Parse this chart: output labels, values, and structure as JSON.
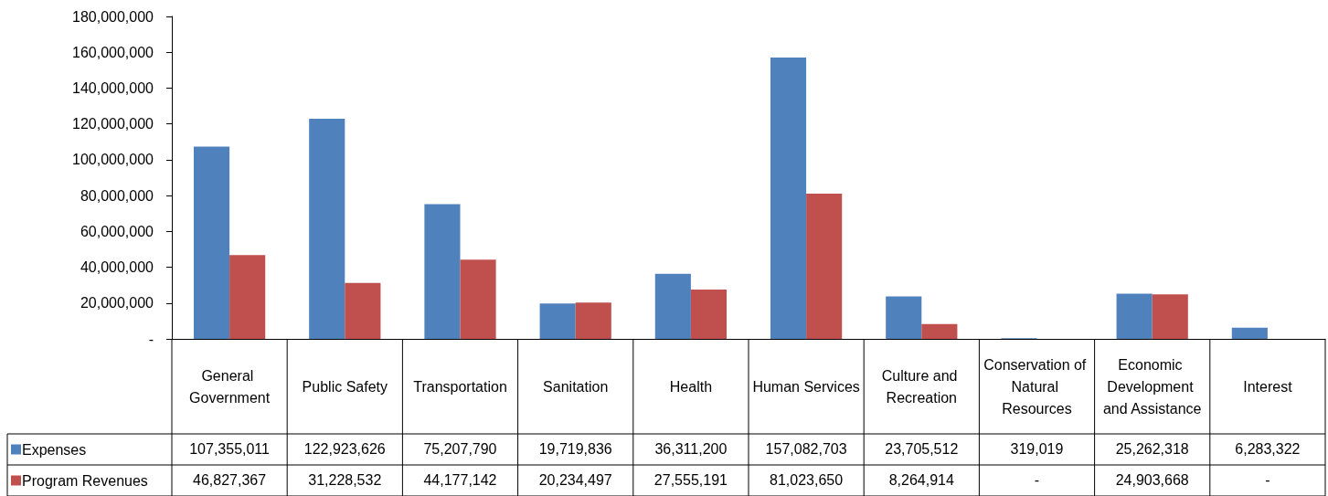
{
  "chart_data": {
    "type": "bar",
    "categories": [
      "General Government",
      "Public Safety",
      "Transportation",
      "Sanitation",
      "Health",
      "Human Services",
      "Culture and Recreation",
      "Conservation of Natural Resources",
      "Economic Development and Assistance",
      "Interest"
    ],
    "series": [
      {
        "name": "Expenses",
        "color": "#4f81bd",
        "values": [
          107355011,
          122923626,
          75207790,
          19719836,
          36311200,
          157082703,
          23705512,
          319019,
          25262318,
          6283322
        ],
        "value_labels": [
          "107,355,011",
          "122,923,626",
          "75,207,790",
          "19,719,836",
          "36,311,200",
          "157,082,703",
          "23,705,512",
          "319,019",
          "25,262,318",
          "6,283,322"
        ]
      },
      {
        "name": "Program Revenues",
        "color": "#c0504d",
        "values": [
          46827367,
          31228532,
          44177142,
          20234497,
          27555191,
          81023650,
          8264914,
          0,
          24903668,
          0
        ],
        "value_labels": [
          "46,827,367",
          "31,228,532",
          "44,177,142",
          "20,234,497",
          "27,555,191",
          "81,023,650",
          "8,264,914",
          "-",
          "24,903,668",
          "-"
        ]
      }
    ],
    "ylim": [
      0,
      180000000
    ],
    "yticks": [
      {
        "value": 0,
        "label": "-"
      },
      {
        "value": 20000000,
        "label": "20,000,000"
      },
      {
        "value": 40000000,
        "label": "40,000,000"
      },
      {
        "value": 60000000,
        "label": "60,000,000"
      },
      {
        "value": 80000000,
        "label": "80,000,000"
      },
      {
        "value": 100000000,
        "label": "100,000,000"
      },
      {
        "value": 120000000,
        "label": "120,000,000"
      },
      {
        "value": 140000000,
        "label": "140,000,000"
      },
      {
        "value": 160000000,
        "label": "160,000,000"
      },
      {
        "value": 180000000,
        "label": "180,000,000"
      }
    ],
    "grid": false,
    "legend": "bottom left"
  }
}
